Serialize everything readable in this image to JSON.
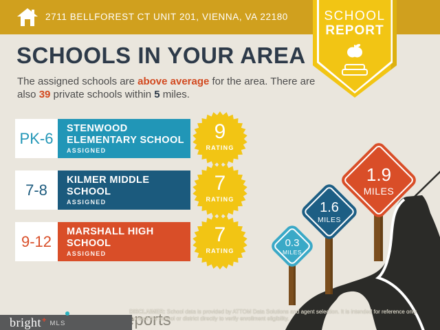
{
  "page": {
    "background": "#eae6dd"
  },
  "header": {
    "address": "2711 BELLFOREST CT UNIT 201, VIENNA, VA 22180",
    "bar_color": "#d0a01e",
    "badge": {
      "line1": "SCHOOL",
      "line2": "REPORT",
      "color": "#f2c514"
    }
  },
  "intro": {
    "title": "SCHOOLS IN YOUR AREA",
    "subtitle": {
      "s1": "The assigned schools are ",
      "em1": "above average",
      "s2": " for the area. There are also ",
      "em2": "39",
      "s3": " private schools within ",
      "em3": "5",
      "s4": " miles."
    }
  },
  "schools": [
    {
      "grades": "PK-6",
      "name_line1": "STENWOOD",
      "name_line2": "ELEMENTARY SCHOOL",
      "status": "ASSIGNED",
      "rating": "9",
      "rating_label": "RATING",
      "color": "#2196b7"
    },
    {
      "grades": "7-8",
      "name_line1": "KILMER MIDDLE",
      "name_line2": "SCHOOL",
      "status": "ASSIGNED",
      "rating": "7",
      "rating_label": "RATING",
      "color": "#1b5a7d"
    },
    {
      "grades": "9-12",
      "name_line1": "MARSHALL HIGH",
      "name_line2": "SCHOOL",
      "status": "ASSIGNED",
      "rating": "7",
      "rating_label": "RATING",
      "color": "#d94e28"
    }
  ],
  "distance_signs": [
    {
      "value": "0.3",
      "unit": "MILES",
      "color": "#3aa9c7"
    },
    {
      "value": "1.6",
      "unit": "MILES",
      "color": "#1d5e84"
    },
    {
      "value": "1.9",
      "unit": "MILES",
      "color": "#d94e28"
    }
  ],
  "road_color": "#2b2b28",
  "footer": {
    "logo_brand": "bright",
    "logo_suffix": "MLS",
    "watermark": "reports",
    "disclaimer_label": "DISCLAIMER:",
    "disclaimer_text": " School data is provided by ATTOM Data Solutions and agent selection. It is intended for reference only. Contact the school or district directly to verify enrollment eligibility."
  }
}
